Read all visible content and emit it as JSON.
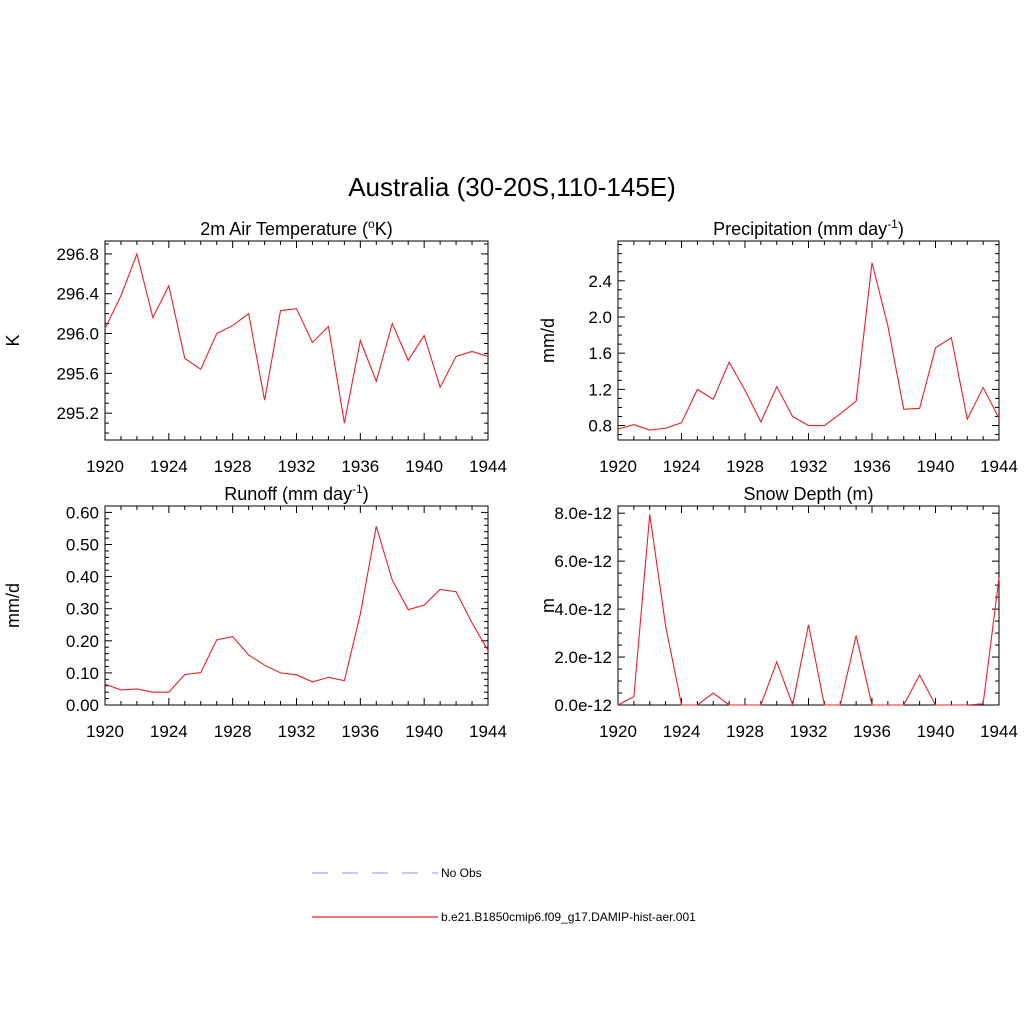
{
  "figure": {
    "title": "Australia (30-20S,110-145E)"
  },
  "colors": {
    "model": "#e8202a",
    "obs": "#a9a9f2"
  },
  "legend": {
    "obs_label": "No Obs",
    "model_label": "b.e21.B1850cmip6.f09_g17.DAMIP-hist-aer.001"
  },
  "chart_data": [
    {
      "type": "line",
      "title": "2m Air Temperature (oK)",
      "title_parts": [
        {
          "t": "2m Air Temperature ("
        },
        {
          "t": "o",
          "sup": true
        },
        {
          "t": "K)"
        }
      ],
      "xlabel": "",
      "ylabel": "K",
      "xlim": [
        1920,
        1944
      ],
      "ylim": [
        294.93,
        296.93
      ],
      "xticks": [
        1920,
        1924,
        1928,
        1932,
        1936,
        1940,
        1944
      ],
      "yticks": [
        295.2,
        295.6,
        296.0,
        296.4,
        296.8
      ],
      "ytick_labels": [
        "295.2",
        "295.6",
        "296.0",
        "296.4",
        "296.8"
      ],
      "yminor": 0.1,
      "series": [
        {
          "x": [
            1920,
            1921,
            1922,
            1923,
            1924,
            1925,
            1926,
            1927,
            1928,
            1929,
            1930,
            1931,
            1932,
            1933,
            1934,
            1935,
            1936,
            1937,
            1938,
            1939,
            1940,
            1941,
            1942,
            1943,
            1944
          ],
          "y": [
            296.05,
            296.38,
            296.8,
            296.16,
            296.48,
            295.75,
            295.64,
            296.0,
            296.08,
            296.2,
            295.33,
            296.23,
            296.25,
            295.91,
            296.07,
            295.1,
            295.93,
            295.52,
            296.1,
            295.73,
            295.98,
            295.46,
            295.77,
            295.82,
            295.77
          ]
        }
      ]
    },
    {
      "type": "line",
      "title": "Precipitation (mm day-1)",
      "title_parts": [
        {
          "t": "Precipitation (mm day"
        },
        {
          "t": "-1",
          "sup": true
        },
        {
          "t": ")"
        }
      ],
      "xlabel": "",
      "ylabel": "mm/d",
      "xlim": [
        1920,
        1944
      ],
      "ylim": [
        0.64,
        2.84
      ],
      "xticks": [
        1920,
        1924,
        1928,
        1932,
        1936,
        1940,
        1944
      ],
      "yticks": [
        0.8,
        1.2,
        1.6,
        2.0,
        2.4
      ],
      "ytick_labels": [
        "0.8",
        "1.2",
        "1.6",
        "2.0",
        "2.4"
      ],
      "yminor": 0.1,
      "series": [
        {
          "x": [
            1920,
            1921,
            1922,
            1923,
            1924,
            1925,
            1926,
            1927,
            1928,
            1929,
            1930,
            1931,
            1932,
            1933,
            1934,
            1935,
            1936,
            1937,
            1938,
            1939,
            1940,
            1941,
            1942,
            1943,
            1944
          ],
          "y": [
            0.76,
            0.81,
            0.75,
            0.77,
            0.83,
            1.2,
            1.09,
            1.5,
            1.19,
            0.84,
            1.23,
            0.9,
            0.8,
            0.8,
            0.93,
            1.07,
            2.6,
            1.9,
            0.98,
            0.99,
            1.66,
            1.77,
            0.87,
            1.22,
            0.88
          ]
        }
      ]
    },
    {
      "type": "line",
      "title": "Runoff (mm day-1)",
      "title_parts": [
        {
          "t": "Runoff (mm day"
        },
        {
          "t": "-1",
          "sup": true
        },
        {
          "t": ")"
        }
      ],
      "xlabel": "",
      "ylabel": "mm/d",
      "xlim": [
        1920,
        1944
      ],
      "ylim": [
        0.0,
        0.62
      ],
      "xticks": [
        1920,
        1924,
        1928,
        1932,
        1936,
        1940,
        1944
      ],
      "yticks": [
        0.0,
        0.1,
        0.2,
        0.3,
        0.4,
        0.5,
        0.6
      ],
      "ytick_labels": [
        "0.00",
        "0.10",
        "0.20",
        "0.30",
        "0.40",
        "0.50",
        "0.60"
      ],
      "yminor": 0.02,
      "series": [
        {
          "x": [
            1920,
            1921,
            1922,
            1923,
            1924,
            1925,
            1926,
            1927,
            1928,
            1929,
            1930,
            1931,
            1932,
            1933,
            1934,
            1935,
            1936,
            1937,
            1938,
            1939,
            1940,
            1941,
            1942,
            1943,
            1944
          ],
          "y": [
            0.065,
            0.047,
            0.05,
            0.04,
            0.04,
            0.095,
            0.101,
            0.203,
            0.213,
            0.156,
            0.124,
            0.1,
            0.094,
            0.072,
            0.086,
            0.076,
            0.283,
            0.557,
            0.389,
            0.297,
            0.311,
            0.36,
            0.353,
            0.256,
            0.17
          ]
        }
      ]
    },
    {
      "type": "line",
      "title": "Snow Depth (m)",
      "title_parts": [
        {
          "t": "Snow Depth (m)"
        }
      ],
      "xlabel": "",
      "ylabel": "m",
      "xlim": [
        1920,
        1944
      ],
      "ylim": [
        0.0,
        8.3e-12
      ],
      "xticks": [
        1920,
        1924,
        1928,
        1932,
        1936,
        1940,
        1944
      ],
      "yticks": [
        0.0,
        2e-12,
        4e-12,
        6e-12,
        8e-12
      ],
      "ytick_labels": [
        "0.0e-12",
        "2.0e-12",
        "4.0e-12",
        "6.0e-12",
        "8.0e-12"
      ],
      "yminor": 5e-13,
      "series": [
        {
          "x": [
            1920,
            1921,
            1922,
            1923,
            1924,
            1925,
            1926,
            1927,
            1928,
            1929,
            1930,
            1931,
            1932,
            1933,
            1934,
            1935,
            1936,
            1937,
            1938,
            1939,
            1940,
            1941,
            1942,
            1943,
            1944
          ],
          "y": [
            0.0,
            3.5e-13,
            7.95e-12,
            3.3e-12,
            0.0,
            0.0,
            5e-13,
            0.0,
            0.0,
            0.0,
            1.8e-12,
            0.0,
            3.35e-12,
            0.0,
            0.0,
            2.9e-12,
            0.0,
            0.0,
            0.0,
            1.25e-12,
            0.0,
            0.0,
            0.0,
            5e-14,
            5.3e-12
          ]
        }
      ]
    }
  ]
}
